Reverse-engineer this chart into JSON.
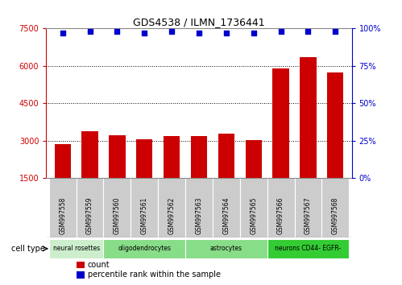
{
  "title": "GDS4538 / ILMN_1736441",
  "samples": [
    "GSM997558",
    "GSM997559",
    "GSM997560",
    "GSM997561",
    "GSM997562",
    "GSM997563",
    "GSM997564",
    "GSM997565",
    "GSM997566",
    "GSM997567",
    "GSM997568"
  ],
  "counts": [
    2850,
    3380,
    3200,
    3050,
    3180,
    3180,
    3280,
    3020,
    5900,
    6350,
    5750
  ],
  "percentile_ranks": [
    97,
    98,
    98,
    97,
    98,
    97,
    97,
    97,
    98,
    98,
    98
  ],
  "ylim_left": [
    1500,
    7500
  ],
  "ylim_right": [
    0,
    100
  ],
  "yticks_left": [
    1500,
    3000,
    4500,
    6000,
    7500
  ],
  "yticks_right": [
    0,
    25,
    50,
    75,
    100
  ],
  "bar_color": "#cc0000",
  "dot_color": "#0000cc",
  "cell_types": [
    {
      "label": "neural rosettes",
      "start": 0,
      "end": 2,
      "color": "#cceecc"
    },
    {
      "label": "oligodendrocytes",
      "start": 2,
      "end": 5,
      "color": "#88dd88"
    },
    {
      "label": "astrocytes",
      "start": 5,
      "end": 8,
      "color": "#88dd88"
    },
    {
      "label": "neurons CD44- EGFR-",
      "start": 8,
      "end": 11,
      "color": "#33cc33"
    }
  ],
  "cell_type_colors": [
    "#cceecc",
    "#88dd88",
    "#88dd88",
    "#33cc33"
  ],
  "background_color": "#ffffff",
  "sample_box_color": "#cccccc",
  "sample_box_edge": "#888888"
}
